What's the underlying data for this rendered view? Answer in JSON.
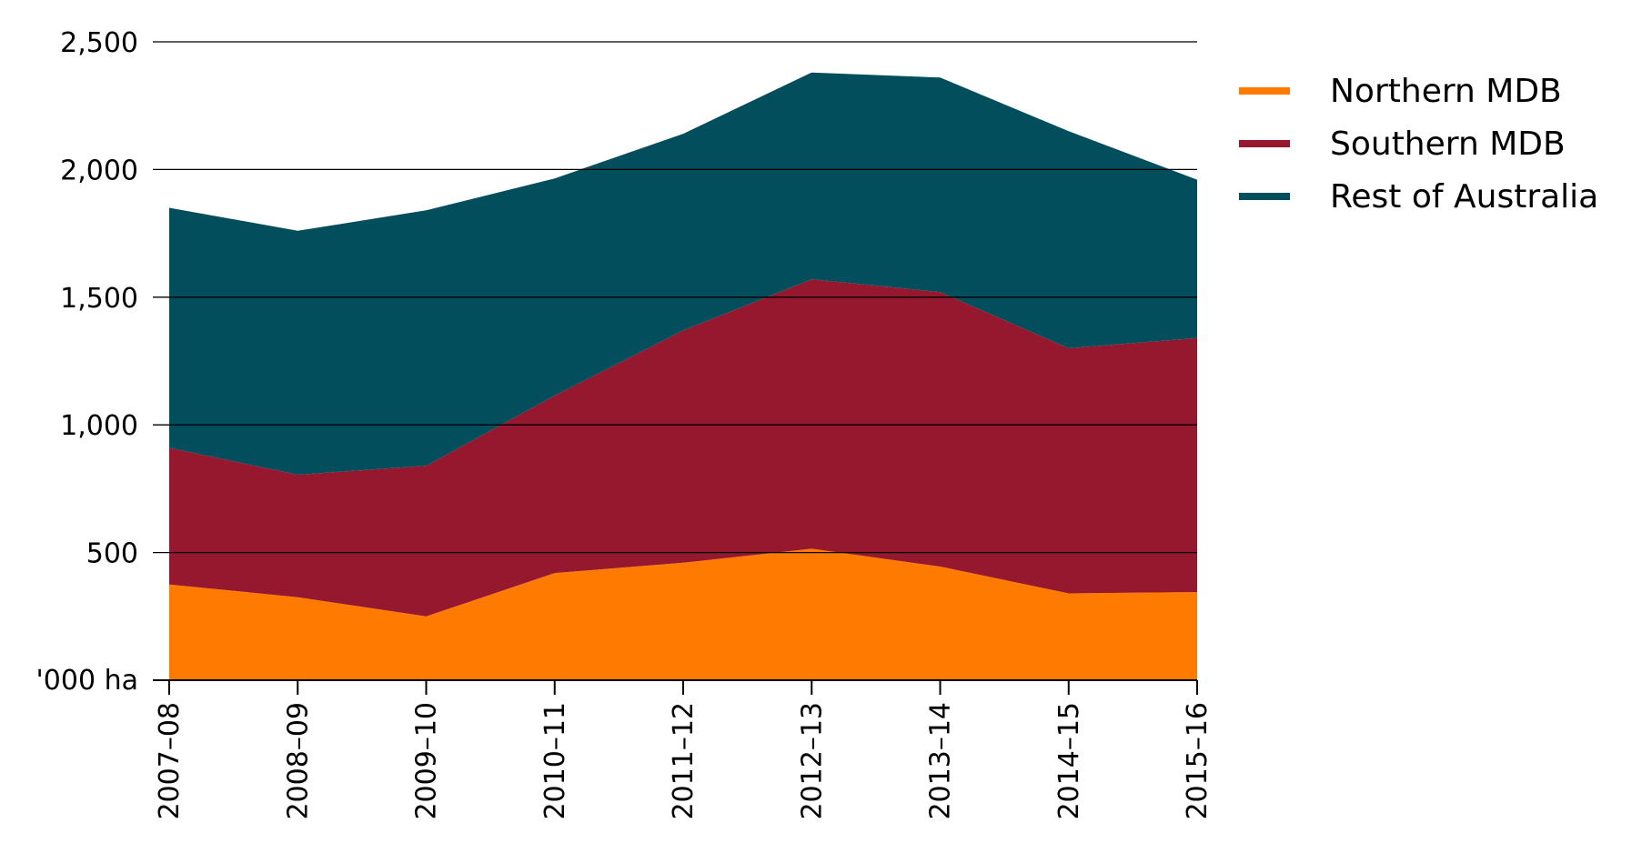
{
  "chart_data": {
    "type": "area",
    "stacked": true,
    "title": "",
    "xlabel": "",
    "ylabel": "",
    "unit_label": "'000 ha",
    "categories": [
      "2007–08",
      "2008–09",
      "2009–10",
      "2010–11",
      "2011–12",
      "2012–13",
      "2013–14",
      "2014–15",
      "2015–16"
    ],
    "yticks": [
      "2,500",
      "2,000",
      "1,500",
      "1,000",
      "500"
    ],
    "ytick_values": [
      2500,
      2000,
      1500,
      1000,
      500
    ],
    "ylim": [
      0,
      2500
    ],
    "grid": true,
    "legend_position": "right",
    "series": [
      {
        "name": "Northern MDB",
        "color": "#FF7A00",
        "values": [
          375,
          325,
          250,
          420,
          460,
          515,
          445,
          340,
          345
        ]
      },
      {
        "name": "Southern MDB",
        "color": "#95182F",
        "values": [
          535,
          480,
          590,
          695,
          910,
          1055,
          1075,
          960,
          995
        ]
      },
      {
        "name": "Rest of Australia",
        "color": "#034E5C",
        "values": [
          940,
          955,
          1000,
          850,
          770,
          810,
          840,
          850,
          620
        ]
      }
    ]
  }
}
